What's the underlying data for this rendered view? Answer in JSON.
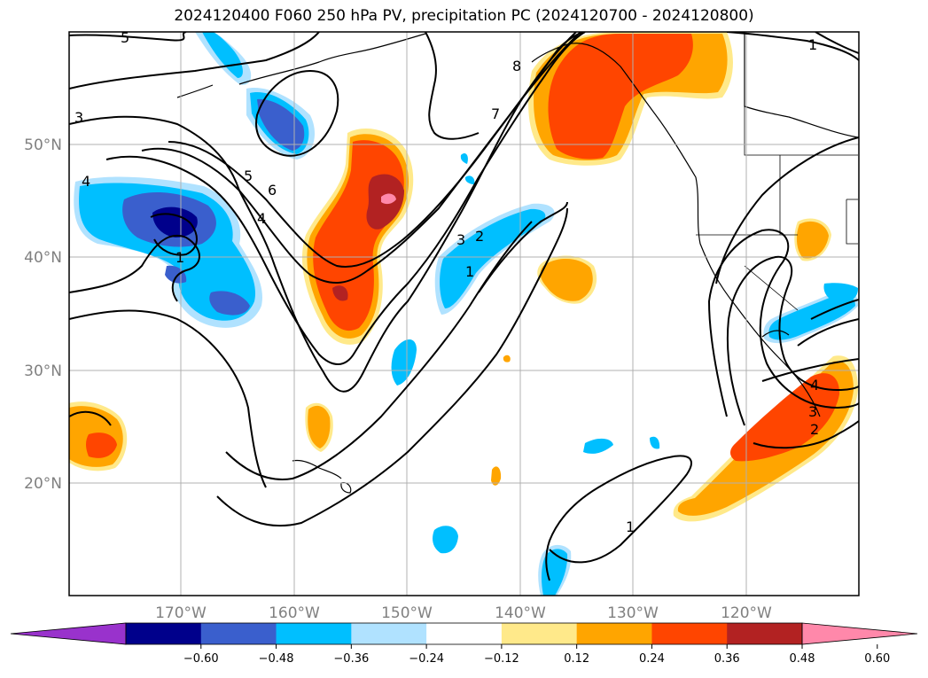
{
  "title": "2024120400 F060 250 hPa PV, precipitation PC (2024120700 - 2024120800)",
  "lon_labels": [
    "170°W",
    "160°W",
    "150°W",
    "140°W",
    "130°W",
    "120°W"
  ],
  "lat_labels": [
    "50°N",
    "40°N",
    "30°N",
    "20°N"
  ],
  "colorbar": {
    "ticks": [
      "−0.60",
      "−0.48",
      "−0.36",
      "−0.24",
      "−0.12",
      "0.12",
      "0.24",
      "0.36",
      "0.48",
      "0.60"
    ],
    "colors": [
      "#9932cc",
      "#00008b",
      "#3a5fcd",
      "#00bfff",
      "#b0e2ff",
      "#ffffff",
      "#ffe98a",
      "#ffa500",
      "#ff4500",
      "#b22222",
      "#ff88aa"
    ]
  },
  "contour_labels": [
    "5",
    "3",
    "4",
    "5",
    "6",
    "4",
    "1",
    "7",
    "8",
    "3",
    "2",
    "1",
    "1",
    "1",
    "3",
    "2",
    "4"
  ],
  "colors": {
    "neg_dark": "#00008b",
    "neg_mid": "#3a5fcd",
    "neg_light": "#00bfff",
    "pos_light": "#ffe98a",
    "pos_mid": "#ffa500",
    "pos_strong": "#ff4500",
    "pos_dark": "#b22222",
    "pos_max": "#ff88aa"
  }
}
